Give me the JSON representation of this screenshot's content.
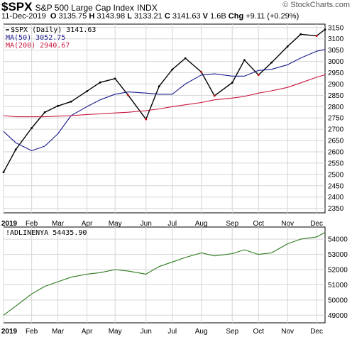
{
  "header": {
    "symbol": "$SPX",
    "name": "S&P 500 Large Cap Index",
    "exchange": "INDX",
    "date": "11-Dec-2019",
    "open_label": "O",
    "open": "3135.75",
    "high_label": "H",
    "high": "3143.98",
    "low_label": "L",
    "low": "3133.21",
    "close_label": "C",
    "close": "3141.63",
    "volume_label": "V",
    "volume": "1.6B",
    "change_label": "Chg",
    "change": "+9.11 (+0.29%)",
    "watermark": "© StockCharts.com"
  },
  "colors": {
    "price": "#000000",
    "up": "#000000",
    "down": "#cc0000",
    "ma50": "#1a1a8c",
    "ma200": "#c8143c",
    "breadth": "#2d7a1e",
    "grid": "#d6d6d6"
  },
  "chart_data": [
    {
      "type": "line",
      "title": "$SPX (Daily) 3141.63",
      "legend_placement": "top-left",
      "grid": true,
      "x": [
        "2019-01-02",
        "2019-01-15",
        "2019-02-01",
        "2019-02-15",
        "2019-03-01",
        "2019-03-15",
        "2019-04-01",
        "2019-04-15",
        "2019-05-01",
        "2019-05-15",
        "2019-06-03",
        "2019-06-17",
        "2019-07-01",
        "2019-07-15",
        "2019-08-01",
        "2019-08-15",
        "2019-09-03",
        "2019-09-16",
        "2019-10-01",
        "2019-10-15",
        "2019-11-01",
        "2019-11-15",
        "2019-12-02",
        "2019-12-11"
      ],
      "x_tick_labels": [
        "2019",
        "Feb",
        "Mar",
        "Apr",
        "May",
        "Jun",
        "Jul",
        "Aug",
        "Sep",
        "Oct",
        "Nov",
        "Dec"
      ],
      "y_ticks": [
        2350,
        2400,
        2450,
        2500,
        2550,
        2600,
        2650,
        2700,
        2750,
        2800,
        2850,
        2900,
        2950,
        3000,
        3050,
        3100,
        3150
      ],
      "ylim": [
        2330,
        3165
      ],
      "series": [
        {
          "name": "$SPX (Daily) 3141.63",
          "values": [
            2510,
            2610,
            2705,
            2775,
            2803,
            2822,
            2868,
            2907,
            2924,
            2850,
            2744,
            2890,
            2964,
            3014,
            2953,
            2848,
            2906,
            3006,
            2940,
            2995,
            3066,
            3120,
            3113,
            3141
          ]
        },
        {
          "name": "MA(50) 3052.75",
          "values": [
            2690,
            2640,
            2605,
            2625,
            2680,
            2760,
            2800,
            2830,
            2855,
            2865,
            2860,
            2855,
            2855,
            2900,
            2940,
            2945,
            2935,
            2935,
            2960,
            2965,
            2985,
            3015,
            3045,
            3053
          ]
        },
        {
          "name": "MA(200) 2940.67",
          "values": [
            2760,
            2755,
            2755,
            2755,
            2758,
            2760,
            2765,
            2768,
            2772,
            2775,
            2782,
            2790,
            2800,
            2808,
            2818,
            2830,
            2838,
            2845,
            2860,
            2870,
            2885,
            2905,
            2930,
            2941
          ]
        }
      ],
      "series_legend": [
        "$SPX (Daily) 3141.63",
        "MA(50) 3052.75",
        "MA(200) 2940.67"
      ]
    },
    {
      "type": "line",
      "title": "!ADLINENYA 54435.90",
      "legend_placement": "top-left",
      "grid": true,
      "x": [
        "2019-01-02",
        "2019-01-15",
        "2019-02-01",
        "2019-02-15",
        "2019-03-01",
        "2019-03-15",
        "2019-04-01",
        "2019-04-15",
        "2019-05-01",
        "2019-05-15",
        "2019-06-03",
        "2019-06-17",
        "2019-07-01",
        "2019-07-15",
        "2019-08-01",
        "2019-08-15",
        "2019-09-03",
        "2019-09-16",
        "2019-10-01",
        "2019-10-15",
        "2019-11-01",
        "2019-11-15",
        "2019-12-02",
        "2019-12-11"
      ],
      "x_tick_labels": [
        "2019",
        "Feb",
        "Mar",
        "Apr",
        "May",
        "Jun",
        "Jul",
        "Aug",
        "Sep",
        "Oct",
        "Nov",
        "Dec"
      ],
      "y_ticks": [
        49000,
        50000,
        51000,
        52000,
        53000,
        54000
      ],
      "ylim": [
        48500,
        54800
      ],
      "series": [
        {
          "name": "!ADLINENYA 54435.90",
          "values": [
            49000,
            49600,
            50400,
            50900,
            51200,
            51500,
            51700,
            51800,
            52000,
            51900,
            51700,
            52200,
            52500,
            52800,
            53100,
            52900,
            53050,
            53300,
            53000,
            53100,
            53700,
            54000,
            54150,
            54436
          ]
        }
      ]
    }
  ]
}
